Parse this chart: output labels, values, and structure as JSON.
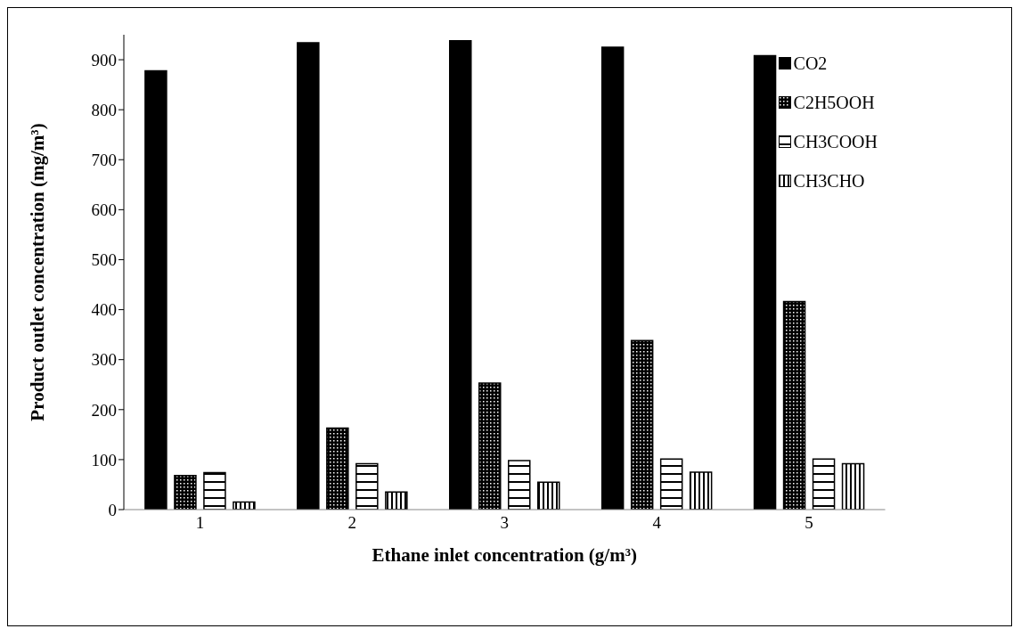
{
  "chart_data": {
    "type": "bar",
    "xlabel": "Ethane inlet concentration (g/m³)",
    "ylabel": "Product outlet concentration (mg/m³)",
    "categories": [
      "1",
      "2",
      "3",
      "4",
      "5"
    ],
    "series": [
      {
        "name": "CO2",
        "color": "#000000",
        "values": [
          878,
          934,
          938,
          925,
          908
        ]
      },
      {
        "name": "C2H5OOH",
        "color": "#000000",
        "values": [
          68,
          163,
          253,
          338,
          416
        ]
      },
      {
        "name": "CH3COOH",
        "color": "#000000",
        "values": [
          74,
          92,
          98,
          101,
          101
        ]
      },
      {
        "name": "CH3CHO",
        "color": "#000000",
        "values": [
          15,
          35,
          55,
          75,
          92
        ]
      }
    ],
    "ylim": [
      0,
      950
    ],
    "yticks": [
      0,
      100,
      200,
      300,
      400,
      500,
      600,
      700,
      800,
      900
    ],
    "grid": false,
    "legend": "top right"
  }
}
